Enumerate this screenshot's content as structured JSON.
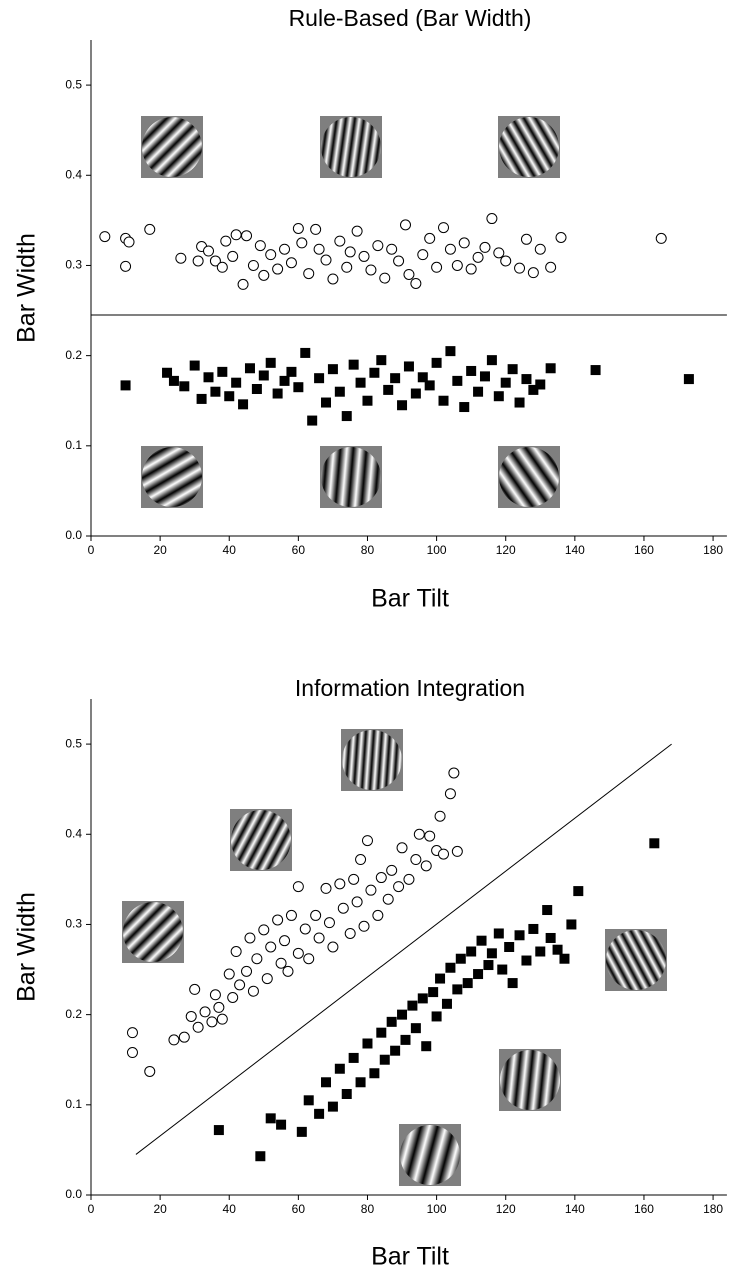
{
  "chart_data": [
    {
      "type": "scatter",
      "title": "Rule-Based (Bar Width)",
      "xlabel": "Bar Tilt",
      "ylabel": "Bar Width",
      "xlim": [
        0,
        184
      ],
      "ylim": [
        0,
        0.55
      ],
      "xticks": [
        0,
        20,
        40,
        60,
        80,
        100,
        120,
        140,
        160,
        180
      ],
      "yticks": [
        {
          "value": 0,
          "label": "0.0"
        },
        0.1,
        0.2,
        0.3,
        0.4,
        0.5
      ],
      "boundary": {
        "x": [
          0,
          184
        ],
        "y": [
          0.245,
          0.245
        ]
      },
      "series": [
        {
          "marker": "circle",
          "color": "#000000",
          "filled": false,
          "x": [
            4,
            10,
            10,
            11,
            17,
            26,
            31,
            32,
            34,
            36,
            38,
            39,
            41,
            42,
            44,
            45,
            47,
            49,
            50,
            52,
            54,
            56,
            58,
            60,
            61,
            63,
            65,
            66,
            68,
            70,
            72,
            74,
            75,
            77,
            79,
            81,
            83,
            85,
            87,
            89,
            91,
            92,
            94,
            96,
            98,
            100,
            102,
            104,
            106,
            108,
            110,
            112,
            114,
            116,
            118,
            120,
            124,
            126,
            128,
            130,
            133,
            136,
            165
          ],
          "values": [
            0.332,
            0.299,
            0.33,
            0.326,
            0.34,
            0.308,
            0.305,
            0.321,
            0.316,
            0.305,
            0.298,
            0.327,
            0.31,
            0.334,
            0.279,
            0.333,
            0.3,
            0.322,
            0.289,
            0.312,
            0.296,
            0.318,
            0.303,
            0.341,
            0.325,
            0.291,
            0.34,
            0.318,
            0.306,
            0.285,
            0.327,
            0.298,
            0.315,
            0.338,
            0.31,
            0.295,
            0.322,
            0.286,
            0.318,
            0.305,
            0.345,
            0.29,
            0.28,
            0.312,
            0.33,
            0.298,
            0.342,
            0.318,
            0.3,
            0.325,
            0.296,
            0.309,
            0.32,
            0.352,
            0.314,
            0.305,
            0.297,
            0.329,
            0.292,
            0.318,
            0.298,
            0.331,
            0.33
          ]
        },
        {
          "marker": "square",
          "color": "#000000",
          "filled": true,
          "x": [
            10,
            22,
            24,
            27,
            30,
            32,
            34,
            36,
            38,
            40,
            42,
            44,
            46,
            48,
            50,
            52,
            54,
            56,
            58,
            60,
            62,
            64,
            66,
            68,
            70,
            72,
            74,
            76,
            78,
            80,
            82,
            84,
            86,
            88,
            90,
            92,
            94,
            96,
            98,
            100,
            102,
            104,
            106,
            108,
            110,
            112,
            114,
            116,
            118,
            120,
            122,
            124,
            126,
            128,
            130,
            133,
            146,
            173
          ],
          "values": [
            0.167,
            0.181,
            0.172,
            0.166,
            0.189,
            0.152,
            0.176,
            0.16,
            0.182,
            0.155,
            0.17,
            0.146,
            0.186,
            0.163,
            0.178,
            0.192,
            0.158,
            0.172,
            0.182,
            0.165,
            0.203,
            0.128,
            0.175,
            0.148,
            0.185,
            0.16,
            0.133,
            0.19,
            0.17,
            0.15,
            0.181,
            0.195,
            0.162,
            0.175,
            0.145,
            0.188,
            0.158,
            0.176,
            0.167,
            0.192,
            0.15,
            0.205,
            0.172,
            0.143,
            0.183,
            0.16,
            0.177,
            0.195,
            0.155,
            0.17,
            0.185,
            0.148,
            0.174,
            0.162,
            0.168,
            0.186,
            0.184,
            0.174
          ]
        }
      ]
    },
    {
      "type": "scatter",
      "title": "Information Integration",
      "xlabel": "Bar Tilt",
      "ylabel": "Bar Width",
      "xlim": [
        0,
        184
      ],
      "ylim": [
        0,
        0.55
      ],
      "xticks": [
        0,
        20,
        40,
        60,
        80,
        100,
        120,
        140,
        160,
        180
      ],
      "yticks": [
        {
          "value": 0,
          "label": "0.0"
        },
        0.1,
        0.2,
        0.3,
        0.4,
        0.5
      ],
      "boundary": {
        "x": [
          13,
          168
        ],
        "y": [
          0.045,
          0.5
        ]
      },
      "series": [
        {
          "marker": "circle",
          "color": "#000000",
          "filled": false,
          "x": [
            12,
            12,
            17,
            24,
            27,
            29,
            30,
            31,
            33,
            35,
            36,
            37,
            38,
            40,
            41,
            42,
            43,
            45,
            46,
            47,
            48,
            50,
            51,
            52,
            54,
            55,
            56,
            57,
            58,
            60,
            60,
            62,
            63,
            65,
            66,
            68,
            69,
            70,
            72,
            73,
            75,
            76,
            77,
            78,
            79,
            80,
            81,
            83,
            84,
            86,
            87,
            89,
            90,
            92,
            94,
            95,
            97,
            98,
            100,
            101,
            102,
            104,
            105,
            106
          ],
          "values": [
            0.158,
            0.18,
            0.137,
            0.172,
            0.175,
            0.198,
            0.228,
            0.186,
            0.203,
            0.192,
            0.222,
            0.208,
            0.195,
            0.245,
            0.219,
            0.27,
            0.233,
            0.248,
            0.285,
            0.226,
            0.262,
            0.294,
            0.24,
            0.275,
            0.305,
            0.257,
            0.282,
            0.248,
            0.31,
            0.268,
            0.342,
            0.295,
            0.262,
            0.31,
            0.285,
            0.34,
            0.302,
            0.275,
            0.345,
            0.318,
            0.29,
            0.35,
            0.325,
            0.372,
            0.298,
            0.393,
            0.338,
            0.31,
            0.352,
            0.328,
            0.36,
            0.342,
            0.385,
            0.35,
            0.372,
            0.4,
            0.365,
            0.398,
            0.382,
            0.42,
            0.378,
            0.445,
            0.468,
            0.381
          ]
        },
        {
          "marker": "square",
          "color": "#000000",
          "filled": true,
          "x": [
            37,
            49,
            52,
            55,
            61,
            63,
            66,
            68,
            70,
            72,
            74,
            76,
            78,
            80,
            82,
            84,
            85,
            87,
            88,
            90,
            91,
            93,
            94,
            96,
            97,
            99,
            100,
            101,
            103,
            104,
            106,
            107,
            109,
            110,
            112,
            113,
            115,
            116,
            118,
            119,
            121,
            122,
            124,
            126,
            128,
            130,
            132,
            133,
            135,
            137,
            139,
            141,
            163
          ],
          "values": [
            0.072,
            0.043,
            0.085,
            0.078,
            0.07,
            0.105,
            0.09,
            0.125,
            0.098,
            0.14,
            0.112,
            0.152,
            0.125,
            0.168,
            0.135,
            0.18,
            0.15,
            0.192,
            0.16,
            0.2,
            0.172,
            0.21,
            0.185,
            0.218,
            0.165,
            0.225,
            0.198,
            0.24,
            0.212,
            0.252,
            0.228,
            0.262,
            0.235,
            0.27,
            0.245,
            0.282,
            0.255,
            0.268,
            0.29,
            0.25,
            0.275,
            0.235,
            0.288,
            0.26,
            0.295,
            0.27,
            0.316,
            0.285,
            0.272,
            0.262,
            0.3,
            0.337,
            0.39
          ]
        }
      ]
    }
  ]
}
